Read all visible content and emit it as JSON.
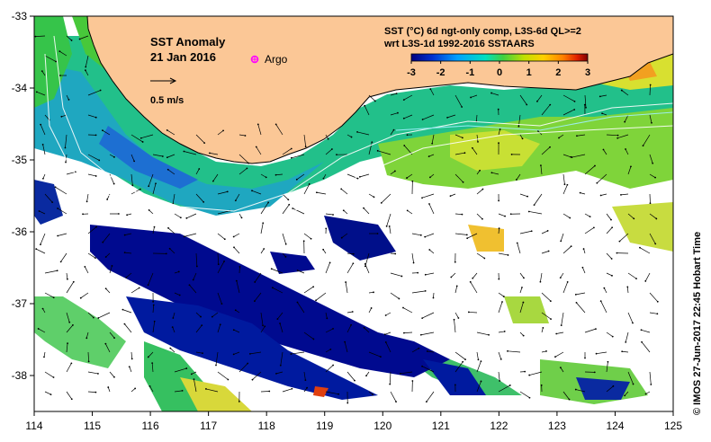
{
  "title": "SST Anomaly",
  "date": "21 Jan 2016",
  "argo_label": "Argo",
  "scale_label": "0.5 m/s",
  "product_line1": "SST (°C) 6d ngt-only comp, L3S-6d QL>=2",
  "product_line2": "wrt L3S-1d 1992-2016 SSTAARS",
  "colorbar": {
    "ticks": [
      "-3",
      "-2",
      "-1",
      "0",
      "1",
      "2",
      "3"
    ],
    "min": -3,
    "max": 3,
    "colors": [
      "#00007f",
      "#0030d0",
      "#00a0ff",
      "#00e0c0",
      "#40d040",
      "#c0e000",
      "#ffd000",
      "#ff8000",
      "#e02000",
      "#800000"
    ]
  },
  "credit": "©  IMOS 27-Jun-2017 22:45 Hobart Time",
  "axes": {
    "x_ticks": [
      "114",
      "115",
      "116",
      "117",
      "118",
      "119",
      "120",
      "121",
      "122",
      "123",
      "124",
      "125"
    ],
    "y_ticks": [
      "-33",
      "-34",
      "-35",
      "-36",
      "-37",
      "-38"
    ],
    "lon_range": [
      114,
      125
    ],
    "lat_range": [
      -38.5,
      -33
    ]
  },
  "colors": {
    "land": "#fbc796",
    "argo": "#ff00ff",
    "background_sea": "#ffffff"
  }
}
